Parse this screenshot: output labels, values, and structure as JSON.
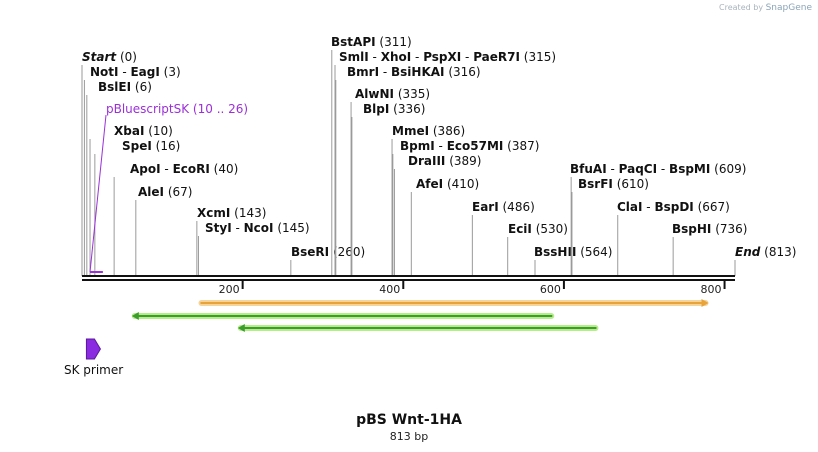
{
  "watermark": {
    "prefix": "Created by",
    "brand": "SnapGene"
  },
  "map": {
    "name": "pBS Wnt-1HA",
    "length_label": "813 bp",
    "length": 813
  },
  "ticks": [
    {
      "pos": 200,
      "label": "200"
    },
    {
      "pos": 400,
      "label": "400"
    },
    {
      "pos": 600,
      "label": "600"
    },
    {
      "pos": 800,
      "label": "800"
    }
  ],
  "sites": [
    {
      "names": [
        "Start"
      ],
      "pos_label": "(0)",
      "pos": 0,
      "italic": true
    },
    {
      "names": [
        "NotI",
        "EagI"
      ],
      "pos_label": "(3)",
      "pos": 3
    },
    {
      "names": [
        "BslEI"
      ],
      "pos_label": "(6)",
      "pos": 6
    },
    {
      "names": [
        "XbaI"
      ],
      "pos_label": "(10)",
      "pos": 10
    },
    {
      "names": [
        "SpeI"
      ],
      "pos_label": "(16)",
      "pos": 16
    },
    {
      "names": [
        "ApoI",
        "EcoRI"
      ],
      "pos_label": "(40)",
      "pos": 40
    },
    {
      "names": [
        "AleI"
      ],
      "pos_label": "(67)",
      "pos": 67
    },
    {
      "names": [
        "XcmI"
      ],
      "pos_label": "(143)",
      "pos": 143
    },
    {
      "names": [
        "StyI",
        "NcoI"
      ],
      "pos_label": "(145)",
      "pos": 145
    },
    {
      "names": [
        "BseRI"
      ],
      "pos_label": "(260)",
      "pos": 260
    },
    {
      "names": [
        "BstAPI"
      ],
      "pos_label": "(311)",
      "pos": 311
    },
    {
      "names": [
        "SmlI",
        "XhoI",
        "PspXI",
        "PaeR7I"
      ],
      "pos_label": "(315)",
      "pos": 315
    },
    {
      "names": [
        "BmrI",
        "BsiHKAI"
      ],
      "pos_label": "(316)",
      "pos": 316
    },
    {
      "names": [
        "AlwNI"
      ],
      "pos_label": "(335)",
      "pos": 335
    },
    {
      "names": [
        "BlpI"
      ],
      "pos_label": "(336)",
      "pos": 336
    },
    {
      "names": [
        "MmeI"
      ],
      "pos_label": "(386)",
      "pos": 386
    },
    {
      "names": [
        "BpmI",
        "Eco57MI"
      ],
      "pos_label": "(387)",
      "pos": 387
    },
    {
      "names": [
        "DraIII"
      ],
      "pos_label": "(389)",
      "pos": 389
    },
    {
      "names": [
        "AfeI"
      ],
      "pos_label": "(410)",
      "pos": 410
    },
    {
      "names": [
        "EarI"
      ],
      "pos_label": "(486)",
      "pos": 486
    },
    {
      "names": [
        "EciI"
      ],
      "pos_label": "(530)",
      "pos": 530
    },
    {
      "names": [
        "BssHII"
      ],
      "pos_label": "(564)",
      "pos": 564
    },
    {
      "names": [
        "BfuAI",
        "PaqCI",
        "BspMI"
      ],
      "pos_label": "(609)",
      "pos": 609
    },
    {
      "names": [
        "BsrFI"
      ],
      "pos_label": "(610)",
      "pos": 610
    },
    {
      "names": [
        "ClaI",
        "BspDI"
      ],
      "pos_label": "(667)",
      "pos": 667
    },
    {
      "names": [
        "BspHI"
      ],
      "pos_label": "(736)",
      "pos": 736
    },
    {
      "names": [
        "End"
      ],
      "pos_label": "(813)",
      "pos": 813,
      "italic": true
    }
  ],
  "features": [
    {
      "name": "pBluescriptSK",
      "pos_label": "(10 .. 26)",
      "start": 10,
      "end": 26,
      "color": "#9b30d9"
    }
  ],
  "orfs": [
    {
      "start": 145,
      "end": 780,
      "direction": "forward",
      "color": "#e8a33a",
      "glow": "#f5d49a"
    },
    {
      "start": 62,
      "end": 588,
      "direction": "reverse",
      "color": "#3c9e2a",
      "glow": "#b8ec8a"
    },
    {
      "start": 194,
      "end": 643,
      "direction": "reverse",
      "color": "#3c9e2a",
      "glow": "#b8ec8a"
    }
  ],
  "primers": [
    {
      "name": "SK primer",
      "pos": 8,
      "color": "#8a2be2"
    }
  ]
}
